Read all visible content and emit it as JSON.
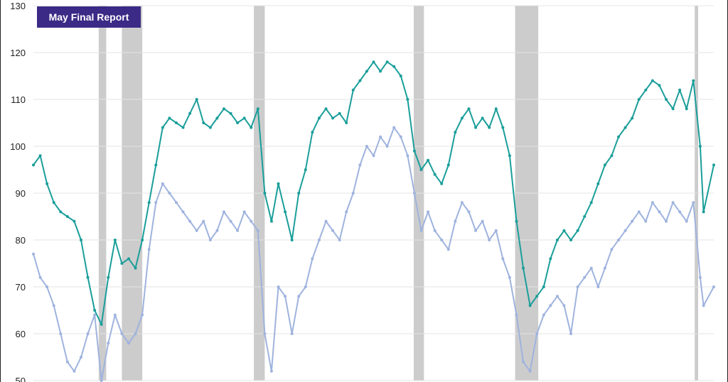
{
  "badge": {
    "label": "May Final Report",
    "color": "#3b2a86"
  },
  "chart_data": {
    "type": "line",
    "title": "",
    "xlabel": "",
    "ylabel": "",
    "ylim": [
      50,
      130
    ],
    "yticks": [
      50,
      60,
      70,
      80,
      90,
      100,
      110,
      120,
      130
    ],
    "grid": true,
    "legend": "none",
    "colors": {
      "teal": "#1a9e9a",
      "lightblue": "#9fb3de",
      "shade": "#cccccc"
    },
    "shaded_periods": [
      [
        0.096,
        0.107
      ],
      [
        0.13,
        0.16
      ],
      [
        0.324,
        0.34
      ],
      [
        0.559,
        0.574
      ],
      [
        0.708,
        0.742
      ],
      [
        0.972,
        0.977
      ]
    ],
    "series": [
      {
        "color_key": "teal",
        "points": [
          [
            0.0,
            96
          ],
          [
            0.01,
            98
          ],
          [
            0.02,
            92
          ],
          [
            0.03,
            88
          ],
          [
            0.04,
            86
          ],
          [
            0.05,
            85
          ],
          [
            0.06,
            84
          ],
          [
            0.07,
            80
          ],
          [
            0.08,
            72
          ],
          [
            0.09,
            65
          ],
          [
            0.1,
            62
          ],
          [
            0.11,
            72
          ],
          [
            0.12,
            80
          ],
          [
            0.13,
            75
          ],
          [
            0.14,
            76
          ],
          [
            0.15,
            74
          ],
          [
            0.16,
            80
          ],
          [
            0.17,
            88
          ],
          [
            0.18,
            96
          ],
          [
            0.19,
            104
          ],
          [
            0.2,
            106
          ],
          [
            0.21,
            105
          ],
          [
            0.22,
            104
          ],
          [
            0.23,
            107
          ],
          [
            0.24,
            110
          ],
          [
            0.25,
            105
          ],
          [
            0.26,
            104
          ],
          [
            0.27,
            106
          ],
          [
            0.28,
            108
          ],
          [
            0.29,
            107
          ],
          [
            0.3,
            105
          ],
          [
            0.31,
            106
          ],
          [
            0.32,
            104
          ],
          [
            0.33,
            108
          ],
          [
            0.34,
            90
          ],
          [
            0.35,
            84
          ],
          [
            0.36,
            92
          ],
          [
            0.37,
            86
          ],
          [
            0.38,
            80
          ],
          [
            0.39,
            90
          ],
          [
            0.4,
            95
          ],
          [
            0.41,
            103
          ],
          [
            0.42,
            106
          ],
          [
            0.43,
            108
          ],
          [
            0.44,
            106
          ],
          [
            0.45,
            107
          ],
          [
            0.46,
            105
          ],
          [
            0.47,
            112
          ],
          [
            0.48,
            114
          ],
          [
            0.49,
            116
          ],
          [
            0.5,
            118
          ],
          [
            0.51,
            116
          ],
          [
            0.52,
            118
          ],
          [
            0.53,
            117
          ],
          [
            0.54,
            115
          ],
          [
            0.55,
            110
          ],
          [
            0.56,
            99
          ],
          [
            0.57,
            95
          ],
          [
            0.58,
            97
          ],
          [
            0.59,
            94
          ],
          [
            0.6,
            92
          ],
          [
            0.61,
            96
          ],
          [
            0.62,
            103
          ],
          [
            0.63,
            106
          ],
          [
            0.64,
            108
          ],
          [
            0.65,
            104
          ],
          [
            0.66,
            106
          ],
          [
            0.67,
            104
          ],
          [
            0.68,
            108
          ],
          [
            0.69,
            104
          ],
          [
            0.7,
            98
          ],
          [
            0.71,
            84
          ],
          [
            0.72,
            74
          ],
          [
            0.73,
            66
          ],
          [
            0.74,
            68
          ],
          [
            0.75,
            70
          ],
          [
            0.76,
            76
          ],
          [
            0.77,
            80
          ],
          [
            0.78,
            82
          ],
          [
            0.79,
            80
          ],
          [
            0.8,
            82
          ],
          [
            0.81,
            85
          ],
          [
            0.82,
            88
          ],
          [
            0.83,
            92
          ],
          [
            0.84,
            96
          ],
          [
            0.85,
            98
          ],
          [
            0.86,
            102
          ],
          [
            0.87,
            104
          ],
          [
            0.88,
            106
          ],
          [
            0.89,
            110
          ],
          [
            0.9,
            112
          ],
          [
            0.91,
            114
          ],
          [
            0.92,
            113
          ],
          [
            0.93,
            110
          ],
          [
            0.94,
            108
          ],
          [
            0.95,
            112
          ],
          [
            0.96,
            108
          ],
          [
            0.97,
            114
          ],
          [
            0.98,
            100
          ],
          [
            0.985,
            86
          ],
          [
            1.0,
            96
          ]
        ]
      },
      {
        "color_key": "lightblue",
        "points": [
          [
            0.0,
            77
          ],
          [
            0.01,
            72
          ],
          [
            0.02,
            70
          ],
          [
            0.03,
            66
          ],
          [
            0.04,
            60
          ],
          [
            0.05,
            54
          ],
          [
            0.06,
            52
          ],
          [
            0.07,
            55
          ],
          [
            0.08,
            60
          ],
          [
            0.09,
            64
          ],
          [
            0.1,
            50
          ],
          [
            0.11,
            58
          ],
          [
            0.12,
            64
          ],
          [
            0.13,
            60
          ],
          [
            0.14,
            58
          ],
          [
            0.15,
            60
          ],
          [
            0.16,
            64
          ],
          [
            0.17,
            78
          ],
          [
            0.18,
            88
          ],
          [
            0.19,
            92
          ],
          [
            0.2,
            90
          ],
          [
            0.21,
            88
          ],
          [
            0.22,
            86
          ],
          [
            0.23,
            84
          ],
          [
            0.24,
            82
          ],
          [
            0.25,
            84
          ],
          [
            0.26,
            80
          ],
          [
            0.27,
            82
          ],
          [
            0.28,
            86
          ],
          [
            0.29,
            84
          ],
          [
            0.3,
            82
          ],
          [
            0.31,
            86
          ],
          [
            0.32,
            84
          ],
          [
            0.33,
            82
          ],
          [
            0.34,
            60
          ],
          [
            0.35,
            52
          ],
          [
            0.36,
            70
          ],
          [
            0.37,
            68
          ],
          [
            0.38,
            60
          ],
          [
            0.39,
            68
          ],
          [
            0.4,
            70
          ],
          [
            0.41,
            76
          ],
          [
            0.42,
            80
          ],
          [
            0.43,
            84
          ],
          [
            0.44,
            82
          ],
          [
            0.45,
            80
          ],
          [
            0.46,
            86
          ],
          [
            0.47,
            90
          ],
          [
            0.48,
            96
          ],
          [
            0.49,
            100
          ],
          [
            0.5,
            98
          ],
          [
            0.51,
            102
          ],
          [
            0.52,
            100
          ],
          [
            0.53,
            104
          ],
          [
            0.54,
            102
          ],
          [
            0.55,
            98
          ],
          [
            0.56,
            90
          ],
          [
            0.57,
            82
          ],
          [
            0.58,
            86
          ],
          [
            0.59,
            82
          ],
          [
            0.6,
            80
          ],
          [
            0.61,
            78
          ],
          [
            0.62,
            84
          ],
          [
            0.63,
            88
          ],
          [
            0.64,
            86
          ],
          [
            0.65,
            82
          ],
          [
            0.66,
            84
          ],
          [
            0.67,
            80
          ],
          [
            0.68,
            82
          ],
          [
            0.69,
            76
          ],
          [
            0.7,
            72
          ],
          [
            0.71,
            64
          ],
          [
            0.72,
            54
          ],
          [
            0.73,
            52
          ],
          [
            0.74,
            60
          ],
          [
            0.75,
            64
          ],
          [
            0.76,
            66
          ],
          [
            0.77,
            68
          ],
          [
            0.78,
            66
          ],
          [
            0.79,
            60
          ],
          [
            0.8,
            70
          ],
          [
            0.81,
            72
          ],
          [
            0.82,
            74
          ],
          [
            0.83,
            70
          ],
          [
            0.84,
            74
          ],
          [
            0.85,
            78
          ],
          [
            0.86,
            80
          ],
          [
            0.87,
            82
          ],
          [
            0.88,
            84
          ],
          [
            0.89,
            86
          ],
          [
            0.9,
            84
          ],
          [
            0.91,
            88
          ],
          [
            0.92,
            86
          ],
          [
            0.93,
            84
          ],
          [
            0.94,
            88
          ],
          [
            0.95,
            86
          ],
          [
            0.96,
            84
          ],
          [
            0.97,
            88
          ],
          [
            0.98,
            72
          ],
          [
            0.985,
            66
          ],
          [
            1.0,
            70
          ]
        ]
      }
    ]
  }
}
